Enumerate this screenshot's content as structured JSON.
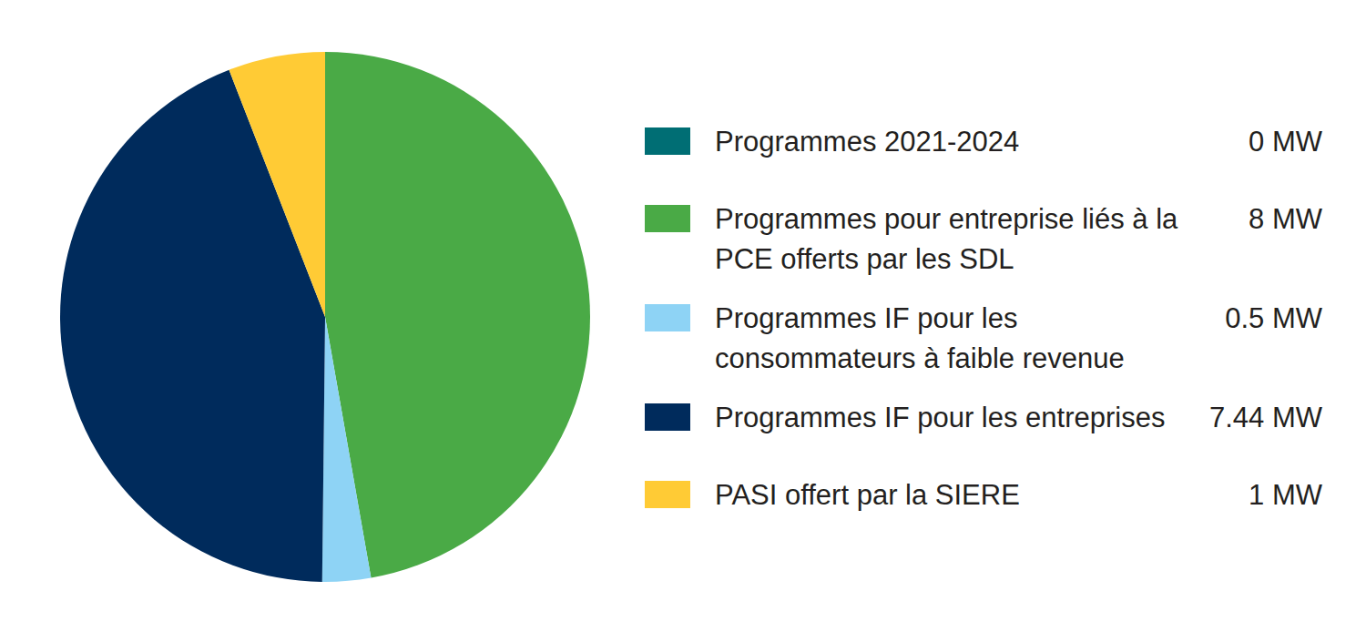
{
  "chart_data": {
    "type": "pie",
    "categories": [
      "Programmes 2021-2024",
      "Programmes pour entreprise liés à la PCE offerts par les SDL",
      "Programmes IF pour les consommateurs à faible revenue",
      "Programmes IF pour les entreprises",
      "PASI offert par la SIERE"
    ],
    "values": [
      0,
      8,
      0.5,
      7.44,
      1
    ],
    "value_labels": [
      "0 MW",
      "8 MW",
      "0.5 MW",
      "7.44 MW",
      "1 MW"
    ],
    "colors": [
      "#006e74",
      "#4aaa46",
      "#8ed3f5",
      "#002b5c",
      "#ffcb35"
    ],
    "legend": "right"
  }
}
